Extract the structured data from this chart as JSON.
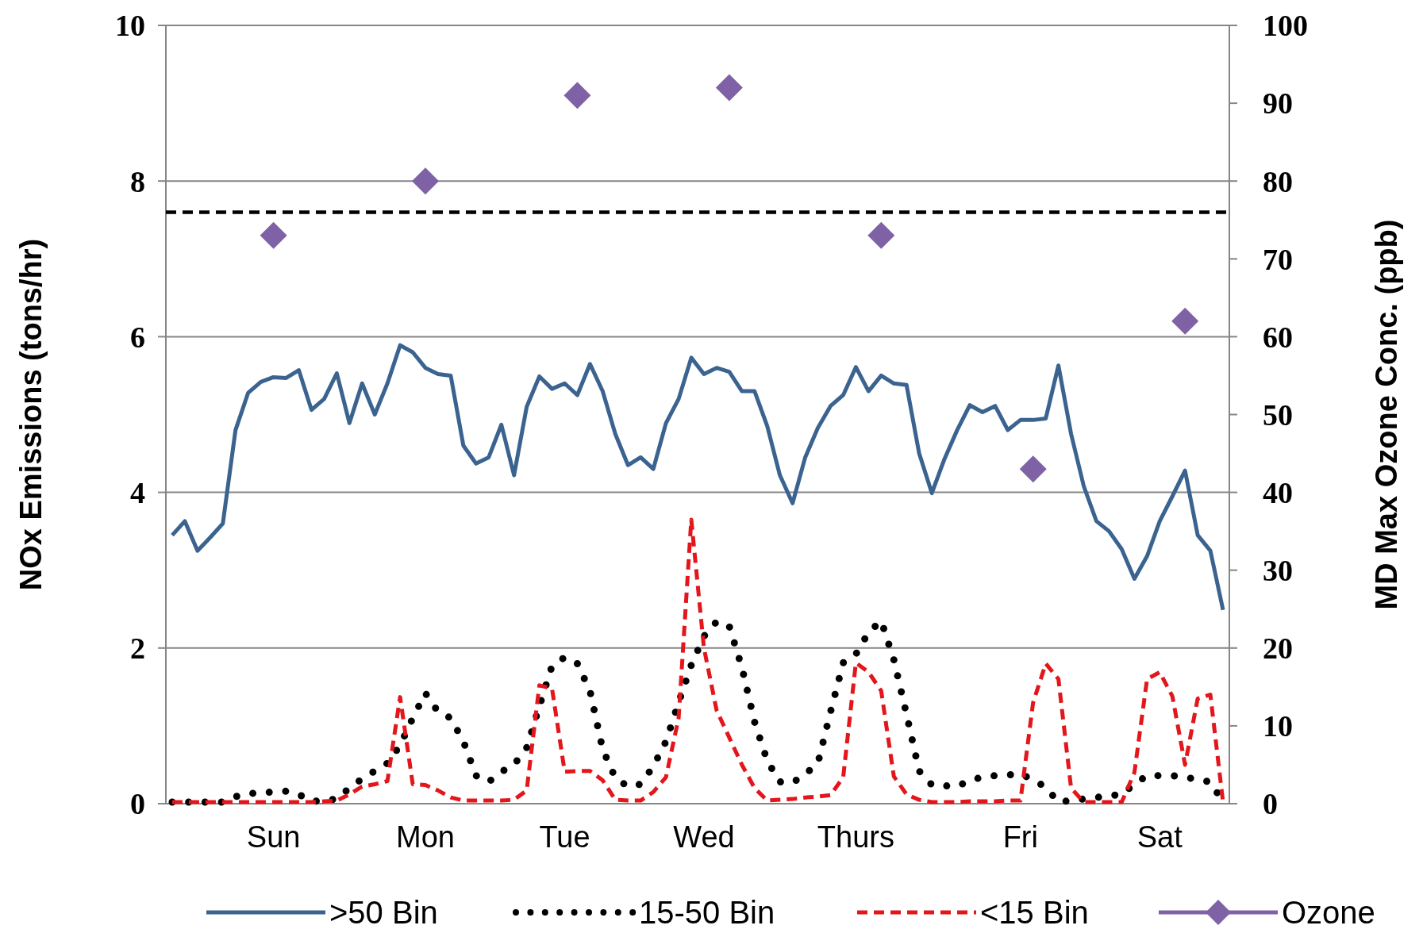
{
  "chart_data": {
    "type": "line",
    "ylabel": "NOx Emissions (tons/hr)",
    "y2label": "MD Max Ozone Conc. (ppb)",
    "categories": [
      null,
      null,
      null,
      null,
      null,
      null,
      null,
      null,
      "Sun",
      null,
      null,
      null,
      null,
      null,
      null,
      null,
      null,
      null,
      null,
      null,
      "Mon",
      null,
      null,
      null,
      null,
      null,
      null,
      null,
      null,
      null,
      null,
      "Tue",
      null,
      null,
      null,
      null,
      null,
      null,
      null,
      null,
      null,
      null,
      "Wed",
      null,
      null,
      null,
      null,
      null,
      null,
      null,
      null,
      null,
      null,
      null,
      "Thurs",
      null,
      null,
      null,
      null,
      null,
      null,
      null,
      null,
      null,
      null,
      null,
      null,
      "Fri",
      null,
      null,
      null,
      null,
      null,
      null,
      null,
      null,
      null,
      null,
      "Sat",
      null,
      null,
      null,
      null,
      null
    ],
    "ylim": [
      0,
      10
    ],
    "yticks": [
      0,
      2,
      4,
      6,
      8,
      10
    ],
    "y2lim": [
      0,
      100
    ],
    "y2ticks": [
      0,
      10,
      20,
      30,
      40,
      50,
      60,
      70,
      80,
      90,
      100
    ],
    "grid": "y",
    "legend": "bottom",
    "ref_lines": [
      {
        "axis": "y2",
        "value": 76,
        "color": "#000000",
        "line_style": "dashed"
      }
    ],
    "series": [
      {
        "name": ">50 Bin",
        "color": "#3b6390",
        "line_style": "solid",
        "values": [
          3.45,
          3.63,
          3.25,
          3.42,
          3.6,
          4.8,
          5.28,
          5.42,
          5.48,
          5.47,
          5.57,
          5.06,
          5.2,
          5.53,
          4.89,
          5.4,
          5.0,
          5.4,
          5.89,
          5.8,
          5.6,
          5.52,
          5.5,
          4.6,
          4.37,
          4.45,
          4.87,
          4.22,
          5.1,
          5.49,
          5.33,
          5.4,
          5.25,
          5.65,
          5.3,
          4.75,
          4.35,
          4.45,
          4.3,
          4.89,
          5.2,
          5.73,
          5.52,
          5.6,
          5.55,
          5.3,
          5.3,
          4.85,
          4.22,
          3.86,
          4.45,
          4.83,
          5.11,
          5.25,
          5.61,
          5.3,
          5.5,
          5.4,
          5.38,
          4.5,
          3.99,
          4.43,
          4.8,
          5.12,
          5.03,
          5.11,
          4.8,
          4.93,
          4.93,
          4.95,
          5.63,
          4.75,
          4.08,
          3.63,
          3.5,
          3.27,
          2.89,
          3.18,
          3.63,
          3.95,
          4.28,
          3.45,
          3.25,
          2.49
        ]
      },
      {
        "name": "15-50 Bin",
        "color": "#000000",
        "line_style": "dotted",
        "values": [
          0.02,
          0.02,
          0.02,
          0.02,
          0.02,
          0.09,
          0.13,
          0.14,
          0.15,
          0.16,
          0.12,
          0.03,
          0.04,
          0.06,
          0.2,
          0.32,
          0.42,
          0.52,
          0.75,
          1.1,
          1.42,
          1.18,
          1.1,
          0.8,
          0.36,
          0.28,
          0.41,
          0.5,
          0.72,
          1.25,
          1.77,
          1.88,
          1.8,
          1.45,
          0.7,
          0.33,
          0.22,
          0.25,
          0.48,
          0.8,
          1.3,
          1.78,
          2.15,
          2.34,
          2.28,
          1.75,
          1.05,
          0.55,
          0.28,
          0.27,
          0.38,
          0.52,
          1.18,
          1.81,
          1.92,
          2.2,
          2.35,
          1.85,
          1.15,
          0.42,
          0.24,
          0.23,
          0.22,
          0.3,
          0.34,
          0.36,
          0.37,
          0.38,
          0.31,
          0.21,
          0.02,
          0.04,
          0.06,
          0.08,
          0.1,
          0.12,
          0.25,
          0.36,
          0.36,
          0.36,
          0.34,
          0.31,
          0.28,
          0.02
        ]
      },
      {
        "name": "<15 Bin",
        "color": "#e3161c",
        "line_style": "dashed",
        "values": [
          0.02,
          0.02,
          0.02,
          0.02,
          0.02,
          0.02,
          0.02,
          0.02,
          0.02,
          0.02,
          0.02,
          0.02,
          0.03,
          0.04,
          0.12,
          0.22,
          0.25,
          0.29,
          1.37,
          0.25,
          0.24,
          0.17,
          0.08,
          0.04,
          0.04,
          0.04,
          0.04,
          0.05,
          0.17,
          1.52,
          1.48,
          0.41,
          0.42,
          0.42,
          0.3,
          0.05,
          0.04,
          0.04,
          0.15,
          0.34,
          1.1,
          3.65,
          2.0,
          1.2,
          0.85,
          0.5,
          0.2,
          0.04,
          0.05,
          0.06,
          0.08,
          0.09,
          0.11,
          0.34,
          1.81,
          1.69,
          1.45,
          0.35,
          0.12,
          0.05,
          0.02,
          0.02,
          0.02,
          0.03,
          0.03,
          0.03,
          0.04,
          0.04,
          1.3,
          1.8,
          1.6,
          0.2,
          0.02,
          0.02,
          0.02,
          0.02,
          0.4,
          1.6,
          1.69,
          1.38,
          0.5,
          1.35,
          1.4,
          0.02
        ]
      },
      {
        "name": "Ozone",
        "type": "scatter",
        "axis": "y2",
        "color": "#7f62a6",
        "marker": "diamond",
        "values": [
          null,
          null,
          null,
          null,
          null,
          null,
          null,
          null,
          73,
          null,
          null,
          null,
          null,
          null,
          null,
          null,
          null,
          null,
          null,
          null,
          80,
          null,
          null,
          null,
          null,
          null,
          null,
          null,
          null,
          null,
          null,
          null,
          91,
          null,
          null,
          null,
          null,
          null,
          null,
          null,
          null,
          null,
          null,
          null,
          92,
          null,
          null,
          null,
          null,
          null,
          null,
          null,
          null,
          null,
          null,
          null,
          73,
          null,
          null,
          null,
          null,
          null,
          null,
          null,
          null,
          null,
          null,
          null,
          43,
          null,
          null,
          null,
          null,
          null,
          null,
          null,
          null,
          null,
          null,
          null,
          62,
          null,
          null,
          null
        ]
      }
    ]
  }
}
